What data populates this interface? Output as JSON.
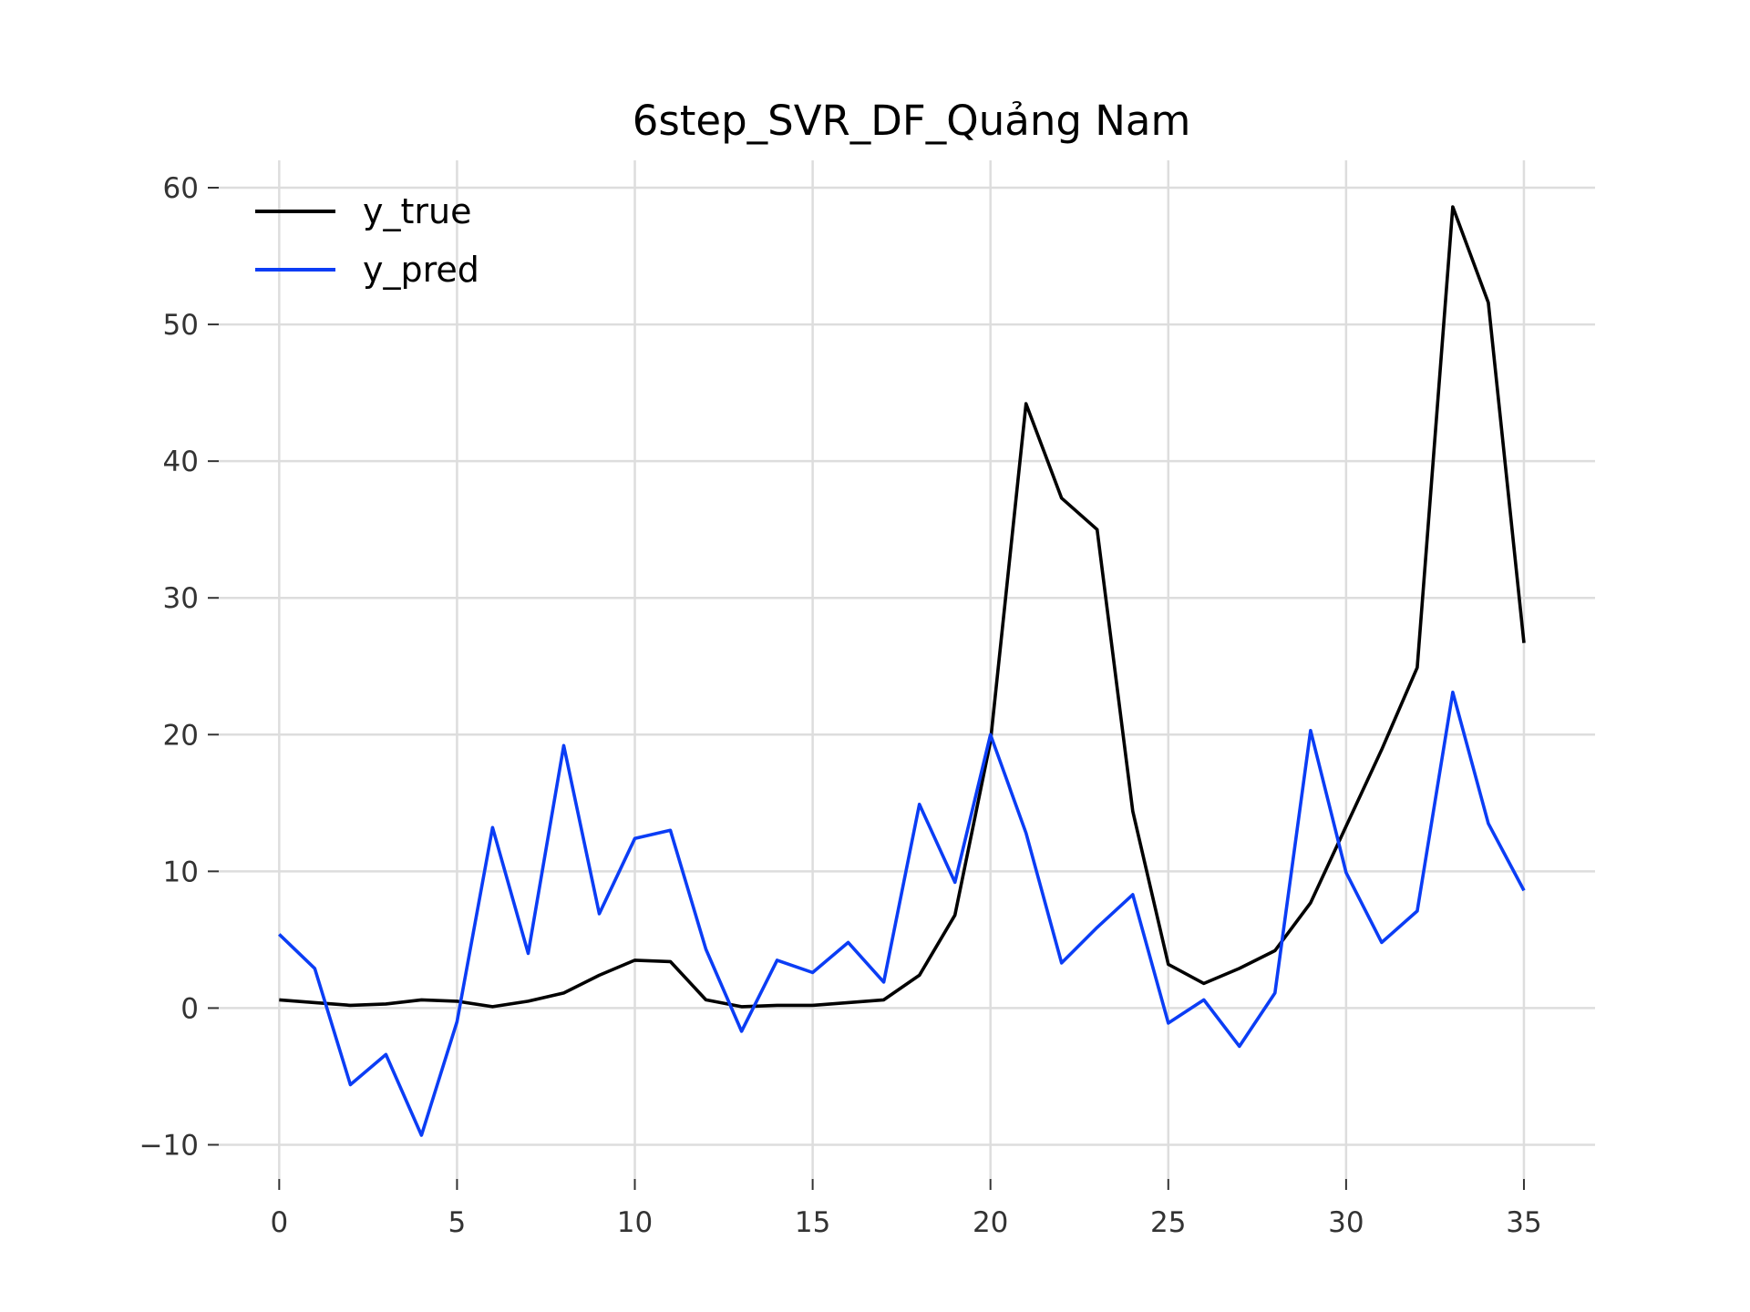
{
  "chart_data": {
    "type": "line",
    "title": "6step_SVR_DF_Quảng Nam",
    "xlabel": "",
    "ylabel": "",
    "xlim": [
      -1.7,
      37.0
    ],
    "ylim": [
      -12.5,
      62.0
    ],
    "xticks": [
      0,
      5,
      10,
      15,
      20,
      25,
      30,
      35
    ],
    "yticks": [
      -10,
      0,
      10,
      20,
      30,
      40,
      50,
      60
    ],
    "ytick_labels": [
      "−10",
      "0",
      "10",
      "20",
      "30",
      "40",
      "50",
      "60"
    ],
    "grid": true,
    "legend_position": "top-left",
    "x": [
      0,
      1,
      2,
      3,
      4,
      5,
      6,
      7,
      8,
      9,
      10,
      11,
      12,
      13,
      14,
      15,
      16,
      17,
      18,
      19,
      20,
      21,
      22,
      23,
      24,
      25,
      26,
      27,
      28,
      29,
      30,
      31,
      32,
      33,
      34,
      35
    ],
    "series": [
      {
        "name": "y_true",
        "color": "#000000",
        "values": [
          0.6,
          0.4,
          0.2,
          0.3,
          0.6,
          0.5,
          0.1,
          0.5,
          1.1,
          2.4,
          3.5,
          3.4,
          0.6,
          0.1,
          0.2,
          0.2,
          0.4,
          0.6,
          2.4,
          6.8,
          19.5,
          44.2,
          37.3,
          35.0,
          14.4,
          3.2,
          1.8,
          2.9,
          4.2,
          7.7,
          13.3,
          18.9,
          24.9,
          58.6,
          51.6,
          26.7
        ]
      },
      {
        "name": "y_pred",
        "color": "#0b3df5",
        "values": [
          5.4,
          2.9,
          -5.6,
          -3.4,
          -9.3,
          -1.0,
          13.2,
          4.0,
          19.2,
          6.9,
          12.4,
          13.0,
          4.3,
          -1.7,
          3.5,
          2.6,
          4.8,
          1.9,
          14.9,
          9.2,
          20.0,
          12.8,
          3.3,
          5.9,
          8.3,
          -1.1,
          0.6,
          -2.8,
          1.1,
          20.3,
          9.9,
          4.8,
          7.1,
          23.1,
          13.5,
          8.6
        ]
      }
    ]
  }
}
